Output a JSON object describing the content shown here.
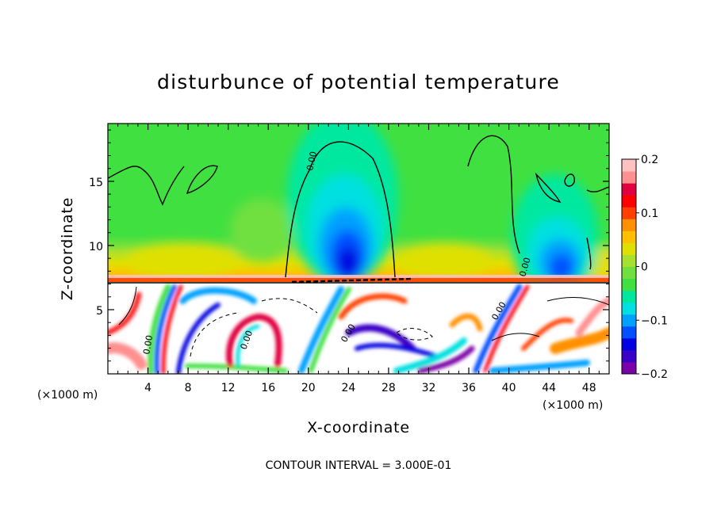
{
  "chart_data": {
    "type": "heatmap",
    "title": "disturbunce of potential temperature",
    "xlabel": "X-coordinate",
    "ylabel": "Z-coordinate",
    "x_unit_note": "(×1000 m)",
    "x_unit_note_right": "(×1000 m)",
    "xlim": [
      0,
      50
    ],
    "ylim": [
      0,
      19.5
    ],
    "x_ticks": [
      "4",
      "8",
      "12",
      "16",
      "20",
      "24",
      "28",
      "32",
      "36",
      "40",
      "44",
      "48"
    ],
    "y_ticks": [
      "5",
      "10",
      "15"
    ],
    "contour_interval_text": "CONTOUR INTERVAL = 3.000E-01",
    "contour_label": "0.00",
    "colorbar": {
      "range": [
        -0.2,
        0.2
      ],
      "tick_labels": [
        "0.2",
        "0.1",
        "0",
        "−0.1",
        "−0.2"
      ],
      "tick_values": [
        0.2,
        0.1,
        0,
        -0.1,
        -0.2
      ],
      "colors": [
        "#7a00a8",
        "#3a00c8",
        "#0000e0",
        "#0050ff",
        "#00a0ff",
        "#00e0e0",
        "#00e8a0",
        "#40e040",
        "#70e040",
        "#a8e030",
        "#e0e000",
        "#ffc000",
        "#ff9000",
        "#ff4000",
        "#ff0000",
        "#e00040",
        "#ff9090",
        "#ffc0c0"
      ]
    },
    "features": {
      "stratosphere_base_z": 7.5,
      "negative_cells": [
        {
          "x": 23.5,
          "z": 8.6,
          "min": -0.2
        },
        {
          "x": 44.8,
          "z": 8.3,
          "min": -0.2
        }
      ],
      "warm_band": {
        "z": 8.2,
        "max": 0.15
      }
    }
  }
}
